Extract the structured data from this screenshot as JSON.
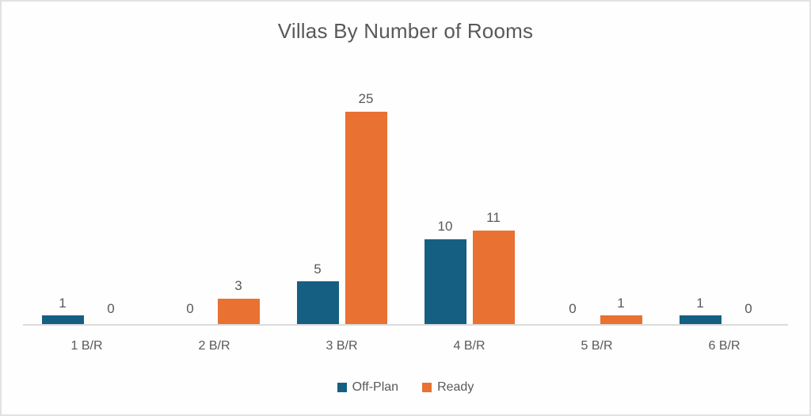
{
  "card": {
    "background": "#fefefe",
    "border_color": "#e2e2e2"
  },
  "chart_data": {
    "type": "bar",
    "title": "Villas By Number of Rooms",
    "categories": [
      "1 B/R",
      "2 B/R",
      "3 B/R",
      "4 B/R",
      "5 B/R",
      "6 B/R"
    ],
    "series": [
      {
        "name": "Off-Plan",
        "color": "#156082",
        "values": [
          1,
          0,
          5,
          10,
          0,
          1
        ]
      },
      {
        "name": "Ready",
        "color": "#E97132",
        "values": [
          0,
          3,
          25,
          11,
          1,
          0
        ]
      }
    ],
    "ylim": [
      0,
      25
    ],
    "data_labels": true,
    "gridlines": false,
    "legend_position": "bottom",
    "axis_line_color": "#dcdcdc",
    "text_color": "#595959"
  }
}
